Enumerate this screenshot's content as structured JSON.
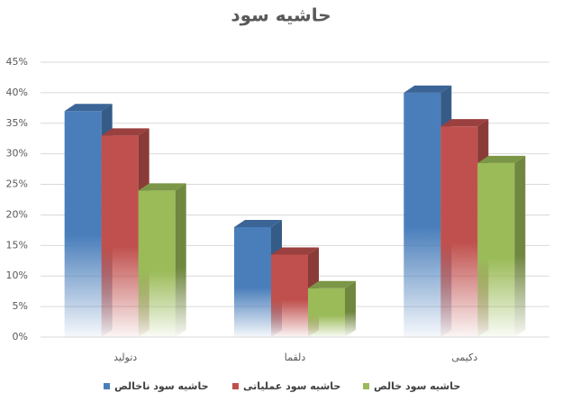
{
  "chart_data": {
    "type": "bar3d",
    "title": "حاشیه سود",
    "categories": [
      "دتولید",
      "دلقما",
      "دکیمی"
    ],
    "series": [
      {
        "name": "حاشیه سود ناخالص",
        "color": "#4a7ebb",
        "values": [
          37,
          18,
          40
        ]
      },
      {
        "name": "حاشیه سود عملیاتی",
        "color": "#c0504d",
        "values": [
          33,
          13.5,
          34.5
        ]
      },
      {
        "name": "حاشیه سود خالص",
        "color": "#9bbb59",
        "values": [
          24,
          8,
          28.5
        ]
      }
    ],
    "ylim": [
      0,
      45
    ],
    "yticks": [
      {
        "value": 0,
        "label": "0%"
      },
      {
        "value": 5,
        "label": "5%"
      },
      {
        "value": 10,
        "label": "10%"
      },
      {
        "value": 15,
        "label": "15%"
      },
      {
        "value": 20,
        "label": "20%"
      },
      {
        "value": 25,
        "label": "25%"
      },
      {
        "value": 30,
        "label": "30%"
      },
      {
        "value": 35,
        "label": "35%"
      },
      {
        "value": 40,
        "label": "40%"
      },
      {
        "value": 45,
        "label": "45%"
      }
    ],
    "grid": true,
    "legend": "bottom"
  }
}
